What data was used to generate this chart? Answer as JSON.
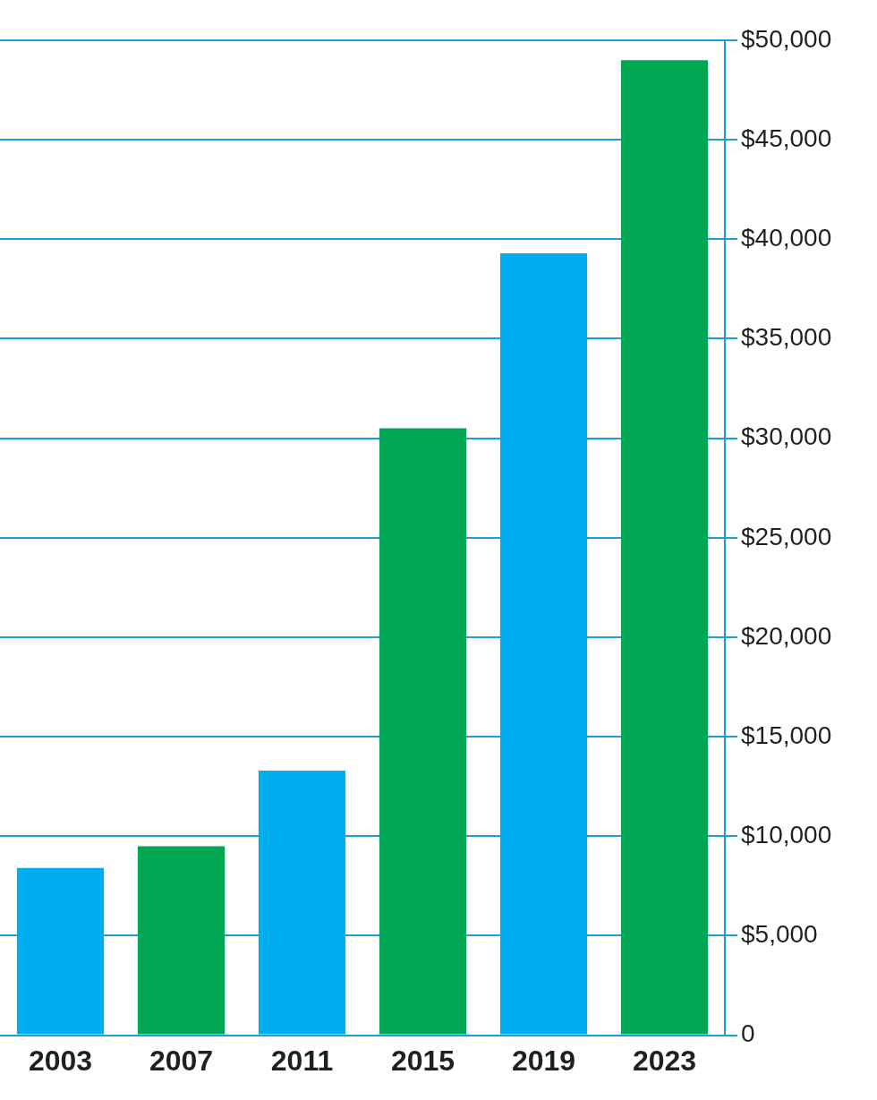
{
  "chart_data": {
    "type": "bar",
    "categories": [
      "2003",
      "2007",
      "2011",
      "2015",
      "2019",
      "2023"
    ],
    "values": [
      8400,
      9500,
      13300,
      30500,
      39300,
      49000
    ],
    "colors": [
      "#00aeef",
      "#00a651",
      "#00aeef",
      "#00a651",
      "#00aeef",
      "#00a651"
    ],
    "ylim": [
      0,
      50000
    ],
    "yticks": [
      0,
      {
        "value": 5000,
        "label": "$5,000"
      },
      {
        "value": 10000,
        "label": "$10,000"
      },
      {
        "value": 15000,
        "label": "$15,000"
      },
      {
        "value": 20000,
        "label": "$20,000"
      },
      {
        "value": 25000,
        "label": "$25,000"
      },
      {
        "value": 30000,
        "label": "$30,000"
      },
      {
        "value": 35000,
        "label": "$35,000"
      },
      {
        "value": 40000,
        "label": "$40,000"
      },
      {
        "value": 45000,
        "label": "$45,000"
      },
      {
        "value": 50000,
        "label": "$50,000"
      }
    ],
    "grid": "y"
  }
}
